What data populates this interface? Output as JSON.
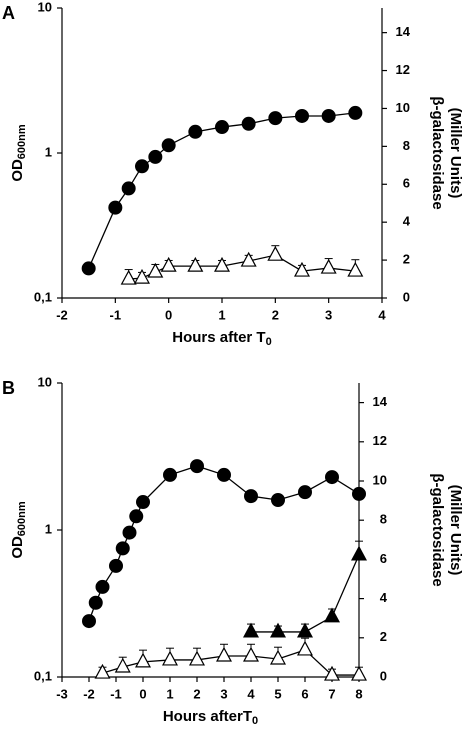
{
  "chart_data": [
    {
      "type": "line",
      "panel": "A",
      "x_label": "Hours after T",
      "x_label_sub": "0",
      "y_label": "OD",
      "y_label_sub": "600nm",
      "y2_label": [
        "β-galactosidase",
        "(Miller Units)"
      ],
      "xlim": [
        -2,
        4
      ],
      "xticks": [
        -2,
        -1,
        0,
        1,
        2,
        3,
        4
      ],
      "ylim": [
        0.1,
        10
      ],
      "yscale": "log",
      "yticks": [
        {
          "value": 0.1,
          "label": "0,1"
        },
        1,
        10
      ],
      "y2lim": [
        0,
        15.3
      ],
      "y2ticks": [
        0,
        2,
        4,
        6,
        8,
        10,
        12,
        14
      ],
      "series": [
        {
          "marker": "circle",
          "fill": "#000000",
          "color": "#000000",
          "axis": "y",
          "x": [
            -1.5,
            -1,
            -0.75,
            -0.5,
            -0.25,
            0,
            0.5,
            1,
            1.5,
            2,
            2.5,
            3,
            3.5
          ],
          "values": [
            0.16,
            0.42,
            0.57,
            0.81,
            0.94,
            1.13,
            1.4,
            1.51,
            1.59,
            1.74,
            1.8,
            1.8,
            1.89
          ]
        },
        {
          "marker": "triangle",
          "fill": "#ffffff",
          "color": "#000000",
          "axis": "y2",
          "x": [
            -0.75,
            -0.5,
            -0.25,
            0,
            0.5,
            1,
            1.5,
            2,
            2.5,
            3,
            3.5
          ],
          "values": [
            1.0,
            1.05,
            1.37,
            1.68,
            1.68,
            1.68,
            1.95,
            2.26,
            1.42,
            1.58,
            1.42
          ],
          "errors": [
            0.5,
            0.3,
            0.4,
            0.3,
            0.3,
            0.3,
            0.3,
            0.5,
            0.3,
            0.5,
            0.6
          ]
        }
      ]
    },
    {
      "type": "line",
      "panel": "B",
      "x_label": "Hours afterT",
      "x_label_sub": "0",
      "y_label": "OD",
      "y_label_sub": "600nm",
      "y2_label": [
        "β-galactosidase",
        "(Miller Units)"
      ],
      "xlim": [
        -3,
        8
      ],
      "xticks": [
        -3,
        -2,
        -1,
        0,
        1,
        2,
        3,
        4,
        5,
        6,
        7,
        8
      ],
      "ylim": [
        0.1,
        10
      ],
      "yscale": "log",
      "yticks": [
        {
          "value": 0.1,
          "label": "0,1"
        },
        1,
        10
      ],
      "y2lim": [
        0,
        15
      ],
      "y2ticks": [
        0,
        2,
        4,
        6,
        8,
        10,
        12,
        14
      ],
      "series": [
        {
          "marker": "circle",
          "fill": "#000000",
          "color": "#000000",
          "axis": "y",
          "x": [
            -2,
            -1.75,
            -1.5,
            -1,
            -0.75,
            -0.5,
            -0.25,
            0,
            1,
            2,
            3,
            4,
            5,
            6,
            7,
            8
          ],
          "values": [
            0.24,
            0.32,
            0.41,
            0.57,
            0.75,
            0.96,
            1.24,
            1.55,
            2.37,
            2.72,
            2.37,
            1.7,
            1.6,
            1.81,
            2.29,
            1.76
          ]
        },
        {
          "marker": "triangle",
          "fill": "#000000",
          "color": "#000000",
          "axis": "y2",
          "x": [
            4,
            5,
            6,
            7,
            8
          ],
          "values": [
            2.3,
            2.3,
            2.3,
            3.07,
            6.23
          ],
          "errors": [
            0.4,
            0.3,
            0.4,
            0.4,
            0.7
          ]
        },
        {
          "marker": "triangle",
          "fill": "#ffffff",
          "color": "#000000",
          "axis": "y2",
          "x": [
            -1.5,
            -0.75,
            0,
            1,
            2,
            3,
            4,
            5,
            6,
            7,
            8
          ],
          "values": [
            0.2,
            0.51,
            0.77,
            0.87,
            0.87,
            1.07,
            1.07,
            0.92,
            1.38,
            0.1,
            0.1
          ],
          "errors": [
            0.3,
            0.5,
            0.6,
            0.6,
            0.6,
            0.6,
            0.6,
            0.6,
            0.6,
            0.3,
            0.4
          ]
        }
      ]
    }
  ]
}
